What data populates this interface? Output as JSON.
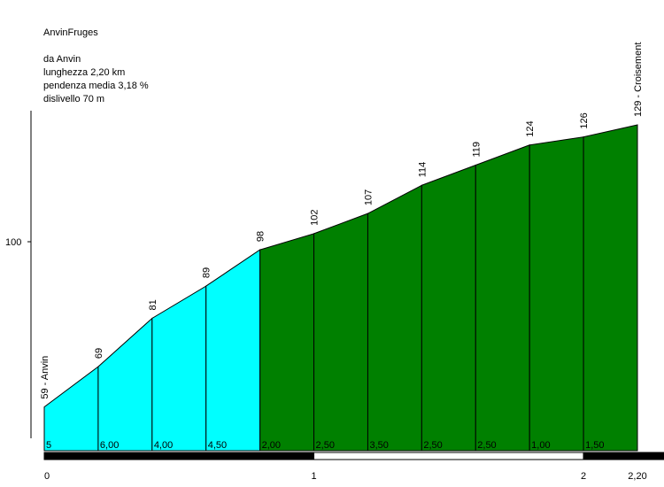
{
  "chart_data": {
    "type": "area",
    "title": "AnvinFruges",
    "info_lines": [
      "da Anvin",
      "lunghezza 2,20 km",
      "pendenza media 3,18 %",
      "dislivello 70 m"
    ],
    "x_km": [
      0,
      0.2,
      0.4,
      0.6,
      0.8,
      1.0,
      1.2,
      1.4,
      1.6,
      1.8,
      2.0,
      2.2
    ],
    "elevation": [
      59,
      69,
      81,
      89,
      98,
      102,
      107,
      114,
      119,
      124,
      126,
      129
    ],
    "point_labels": [
      "59 - Anvin",
      "69",
      "81",
      "89",
      "98",
      "102",
      "107",
      "114",
      "119",
      "124",
      "126",
      "129 - Croisement"
    ],
    "segment_gradients": [
      "5",
      "6,00",
      "4,00",
      "4,50",
      "2,00",
      "2,50",
      "3,50",
      "2,50",
      "2,50",
      "1,00",
      "1,50"
    ],
    "segment_colors": [
      "#00ffff",
      "#00ffff",
      "#00ffff",
      "#00ffff",
      "#008000",
      "#008000",
      "#008000",
      "#008000",
      "#008000",
      "#008000",
      "#008000"
    ],
    "y_ticks": [
      {
        "value": 100,
        "label": "100"
      }
    ],
    "x_ticks": [
      {
        "value": 0,
        "label": "0"
      },
      {
        "value": 1,
        "label": "1"
      },
      {
        "value": 2,
        "label": "2"
      },
      {
        "value": 2.2,
        "label": "2,20"
      }
    ],
    "ylim": [
      55,
      140
    ],
    "xlim": [
      0,
      2.2
    ],
    "km_bar_colors": [
      "#000000",
      "#ffffff"
    ],
    "outline_color": "#000000"
  }
}
